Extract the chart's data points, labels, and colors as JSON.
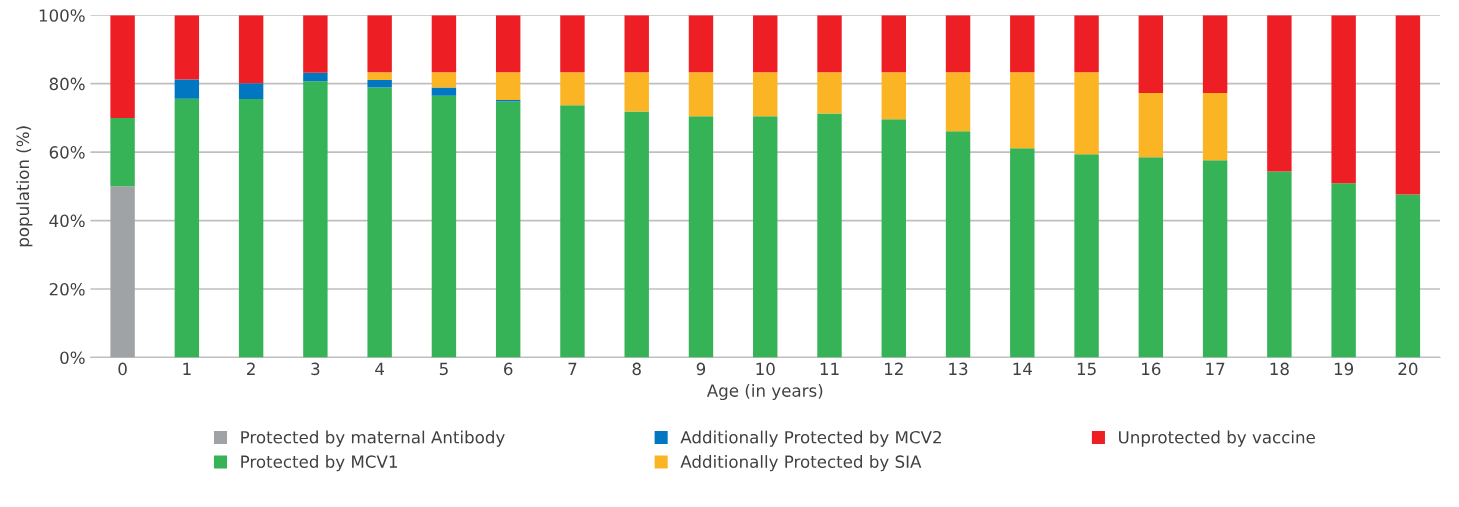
{
  "chart_data": {
    "type": "bar",
    "stacked": true,
    "xlabel": "Age (in years)",
    "ylabel": "population (%)",
    "categories": [
      "0",
      "1",
      "2",
      "3",
      "4",
      "5",
      "6",
      "7",
      "8",
      "9",
      "10",
      "11",
      "12",
      "13",
      "14",
      "15",
      "16",
      "17",
      "18",
      "19",
      "20"
    ],
    "series": [
      {
        "name": "Protected by maternal Antibody",
        "color": "#a0a3a6",
        "values": [
          50,
          0,
          0,
          0,
          0,
          0,
          0,
          0,
          0,
          0,
          0,
          0,
          0,
          0,
          0,
          0,
          0,
          0,
          0,
          0,
          0
        ]
      },
      {
        "name": "Protected by MCV1",
        "color": "#36b357",
        "values": [
          20,
          75.6,
          75.5,
          80.7,
          78.9,
          76.5,
          74.8,
          73.7,
          71.9,
          70.5,
          70.5,
          71.3,
          69.6,
          66.1,
          61.1,
          59.4,
          58.5,
          57.6,
          54.3,
          50.9,
          47.6
        ]
      },
      {
        "name": "Additionally Protected by MCV2",
        "color": "#0077c0",
        "values": [
          0,
          5.6,
          4.6,
          2.5,
          2.2,
          2.4,
          0.4,
          0,
          0,
          0,
          0,
          0,
          0,
          0,
          0,
          0,
          0,
          0,
          0,
          0,
          0
        ]
      },
      {
        "name": "Additionally Protected by SIA",
        "color": "#fbb424",
        "values": [
          0,
          0,
          0,
          0,
          2.2,
          4.4,
          8.1,
          9.6,
          11.4,
          12.8,
          12.8,
          12.0,
          13.7,
          17.2,
          22.2,
          23.9,
          18.8,
          19.7,
          0,
          0,
          0
        ]
      },
      {
        "name": "Unprotected by vaccine",
        "color": "#ee1e25",
        "values": [
          30,
          18.8,
          19.9,
          16.8,
          16.7,
          16.7,
          16.7,
          16.7,
          16.7,
          16.7,
          16.7,
          16.7,
          16.7,
          16.7,
          16.7,
          16.7,
          22.7,
          22.7,
          45.7,
          49.1,
          52.4
        ]
      }
    ],
    "ylim": [
      0,
      100
    ],
    "yticks": [
      {
        "value": 0,
        "label": "0%"
      },
      {
        "value": 20,
        "label": "20%"
      },
      {
        "value": 40,
        "label": "40%"
      },
      {
        "value": 60,
        "label": "60%"
      },
      {
        "value": 80,
        "label": "80%"
      },
      {
        "value": 100,
        "label": "100%"
      }
    ],
    "grid": "y",
    "legend": "bottom"
  }
}
